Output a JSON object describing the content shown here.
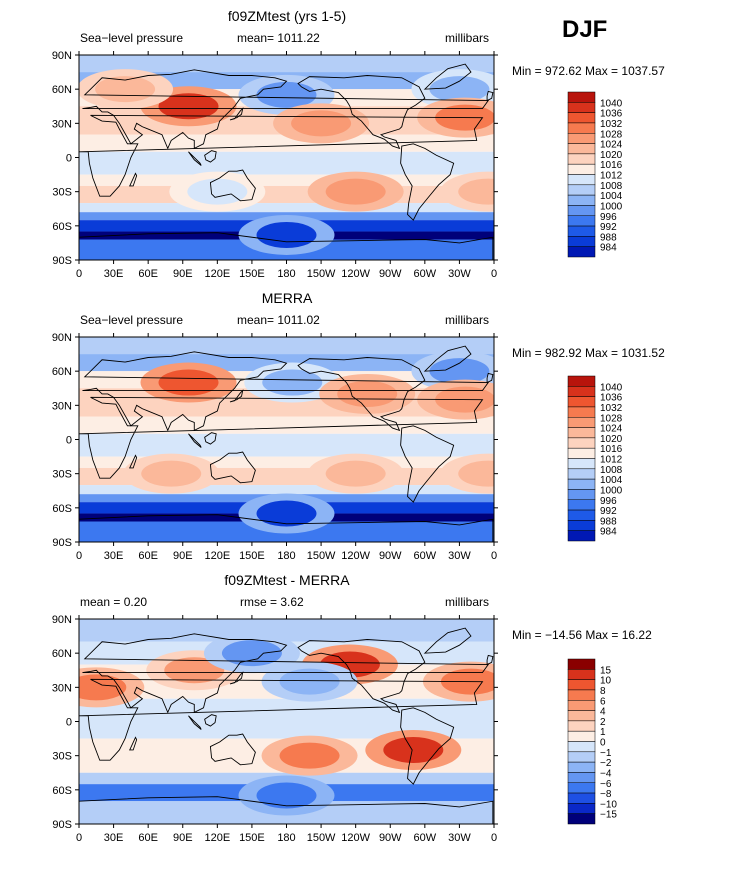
{
  "season": "DJF",
  "axes": {
    "lat_ticks": [
      "90N",
      "60N",
      "30N",
      "0",
      "30S",
      "60S",
      "90S"
    ],
    "lon_ticks": [
      "0",
      "30E",
      "60E",
      "90E",
      "120E",
      "150E",
      "180",
      "150W",
      "120W",
      "90W",
      "60W",
      "30W",
      "0"
    ]
  },
  "colors": {
    "abs_levels": [
      "#00007a",
      "#0018b4",
      "#0a3cd8",
      "#1e5ae8",
      "#3c78f0",
      "#6496f2",
      "#8cb4f5",
      "#b4cef7",
      "#d6e6fa",
      "#fdeee4",
      "#fdd3bf",
      "#fbb89a",
      "#f99a74",
      "#f67a4f",
      "#ee5630",
      "#d8321c",
      "#b8140c",
      "#8a0000"
    ],
    "diff_levels": [
      "#00007a",
      "#0a28c8",
      "#1e50e4",
      "#3c78f0",
      "#6496f2",
      "#8cb4f5",
      "#b4cef7",
      "#d6e6fa",
      "#fdeee4",
      "#fdd3bf",
      "#fbb89a",
      "#f99a74",
      "#f67a4f",
      "#ee5630",
      "#d8321c",
      "#8a0000"
    ]
  },
  "panels": [
    {
      "title": "f09ZMtest (yrs 1-5)",
      "left_label": "Sea−level pressure",
      "center_label": "mean= 1011.22",
      "right_label": "millibars",
      "min_max": "Min = 972.62 Max = 1037.57"
    },
    {
      "title": "MERRA",
      "left_label": "Sea−level pressure",
      "center_label": "mean= 1011.02",
      "right_label": "millibars",
      "min_max": "Min = 982.92 Max = 1031.52"
    },
    {
      "title": "f09ZMtest - MERRA",
      "left_label": "mean =    0.20",
      "center_label": "rmse =    3.62",
      "right_label": "millibars",
      "min_max": "Min = −14.56 Max =  16.22"
    }
  ],
  "chart_data": [
    {
      "type": "heatmap",
      "title": "f09ZMtest (yrs 1-5)",
      "variable": "Sea−level pressure",
      "units": "millibars",
      "mean": 1011.22,
      "min": 972.62,
      "max": 1037.57,
      "colorbar_levels": [
        "984",
        "988",
        "992",
        "996",
        "1000",
        "1004",
        "1008",
        "1012",
        "1016",
        "1020",
        "1024",
        "1028",
        "1032",
        "1036",
        "1040"
      ],
      "features": [
        {
          "lon": 95,
          "lat": 45,
          "value": 1036
        },
        {
          "lon": 180,
          "lat": 55,
          "value": 996
        },
        {
          "lon": 330,
          "lat": 60,
          "value": 1000
        },
        {
          "lon": 335,
          "lat": 35,
          "value": 1028
        },
        {
          "lon": 210,
          "lat": 30,
          "value": 1024
        },
        {
          "lon": 40,
          "lat": 60,
          "value": 1020
        },
        {
          "lon": 240,
          "lat": -30,
          "value": 1024
        },
        {
          "lon": 355,
          "lat": -30,
          "value": 1020
        },
        {
          "lon": 120,
          "lat": -30,
          "value": 1008
        },
        {
          "lon": 180,
          "lat": -68,
          "value": 984
        }
      ]
    },
    {
      "type": "heatmap",
      "title": "MERRA",
      "variable": "Sea−level pressure",
      "units": "millibars",
      "mean": 1011.02,
      "min": 982.92,
      "max": 1031.52,
      "colorbar_levels": [
        "984",
        "988",
        "992",
        "996",
        "1000",
        "1004",
        "1008",
        "1012",
        "1016",
        "1020",
        "1024",
        "1028",
        "1032",
        "1036",
        "1040"
      ],
      "features": [
        {
          "lon": 95,
          "lat": 50,
          "value": 1032
        },
        {
          "lon": 185,
          "lat": 50,
          "value": 1000
        },
        {
          "lon": 330,
          "lat": 60,
          "value": 996
        },
        {
          "lon": 335,
          "lat": 35,
          "value": 1024
        },
        {
          "lon": 250,
          "lat": 40,
          "value": 1024
        },
        {
          "lon": 240,
          "lat": -30,
          "value": 1020
        },
        {
          "lon": 355,
          "lat": -30,
          "value": 1020
        },
        {
          "lon": 80,
          "lat": -30,
          "value": 1020
        },
        {
          "lon": 180,
          "lat": -65,
          "value": 984
        }
      ]
    },
    {
      "type": "heatmap",
      "title": "f09ZMtest - MERRA",
      "units": "millibars",
      "mean": 0.2,
      "rmse": 3.62,
      "min": -14.56,
      "max": 16.22,
      "colorbar_levels": [
        "−15",
        "−10",
        "−8",
        "−6",
        "−4",
        "−2",
        "−1",
        "0",
        "1",
        "2",
        "4",
        "6",
        "8",
        "10",
        "15"
      ],
      "features": [
        {
          "lon": 235,
          "lat": 50,
          "value": 10
        },
        {
          "lon": 290,
          "lat": -25,
          "value": 10
        },
        {
          "lon": 15,
          "lat": 30,
          "value": 6
        },
        {
          "lon": 100,
          "lat": 45,
          "value": 4
        },
        {
          "lon": 340,
          "lat": 35,
          "value": 6
        },
        {
          "lon": 150,
          "lat": 60,
          "value": -6
        },
        {
          "lon": 200,
          "lat": 35,
          "value": -4
        },
        {
          "lon": 200,
          "lat": -30,
          "value": 6
        },
        {
          "lon": 180,
          "lat": -65,
          "value": -8
        }
      ]
    }
  ]
}
